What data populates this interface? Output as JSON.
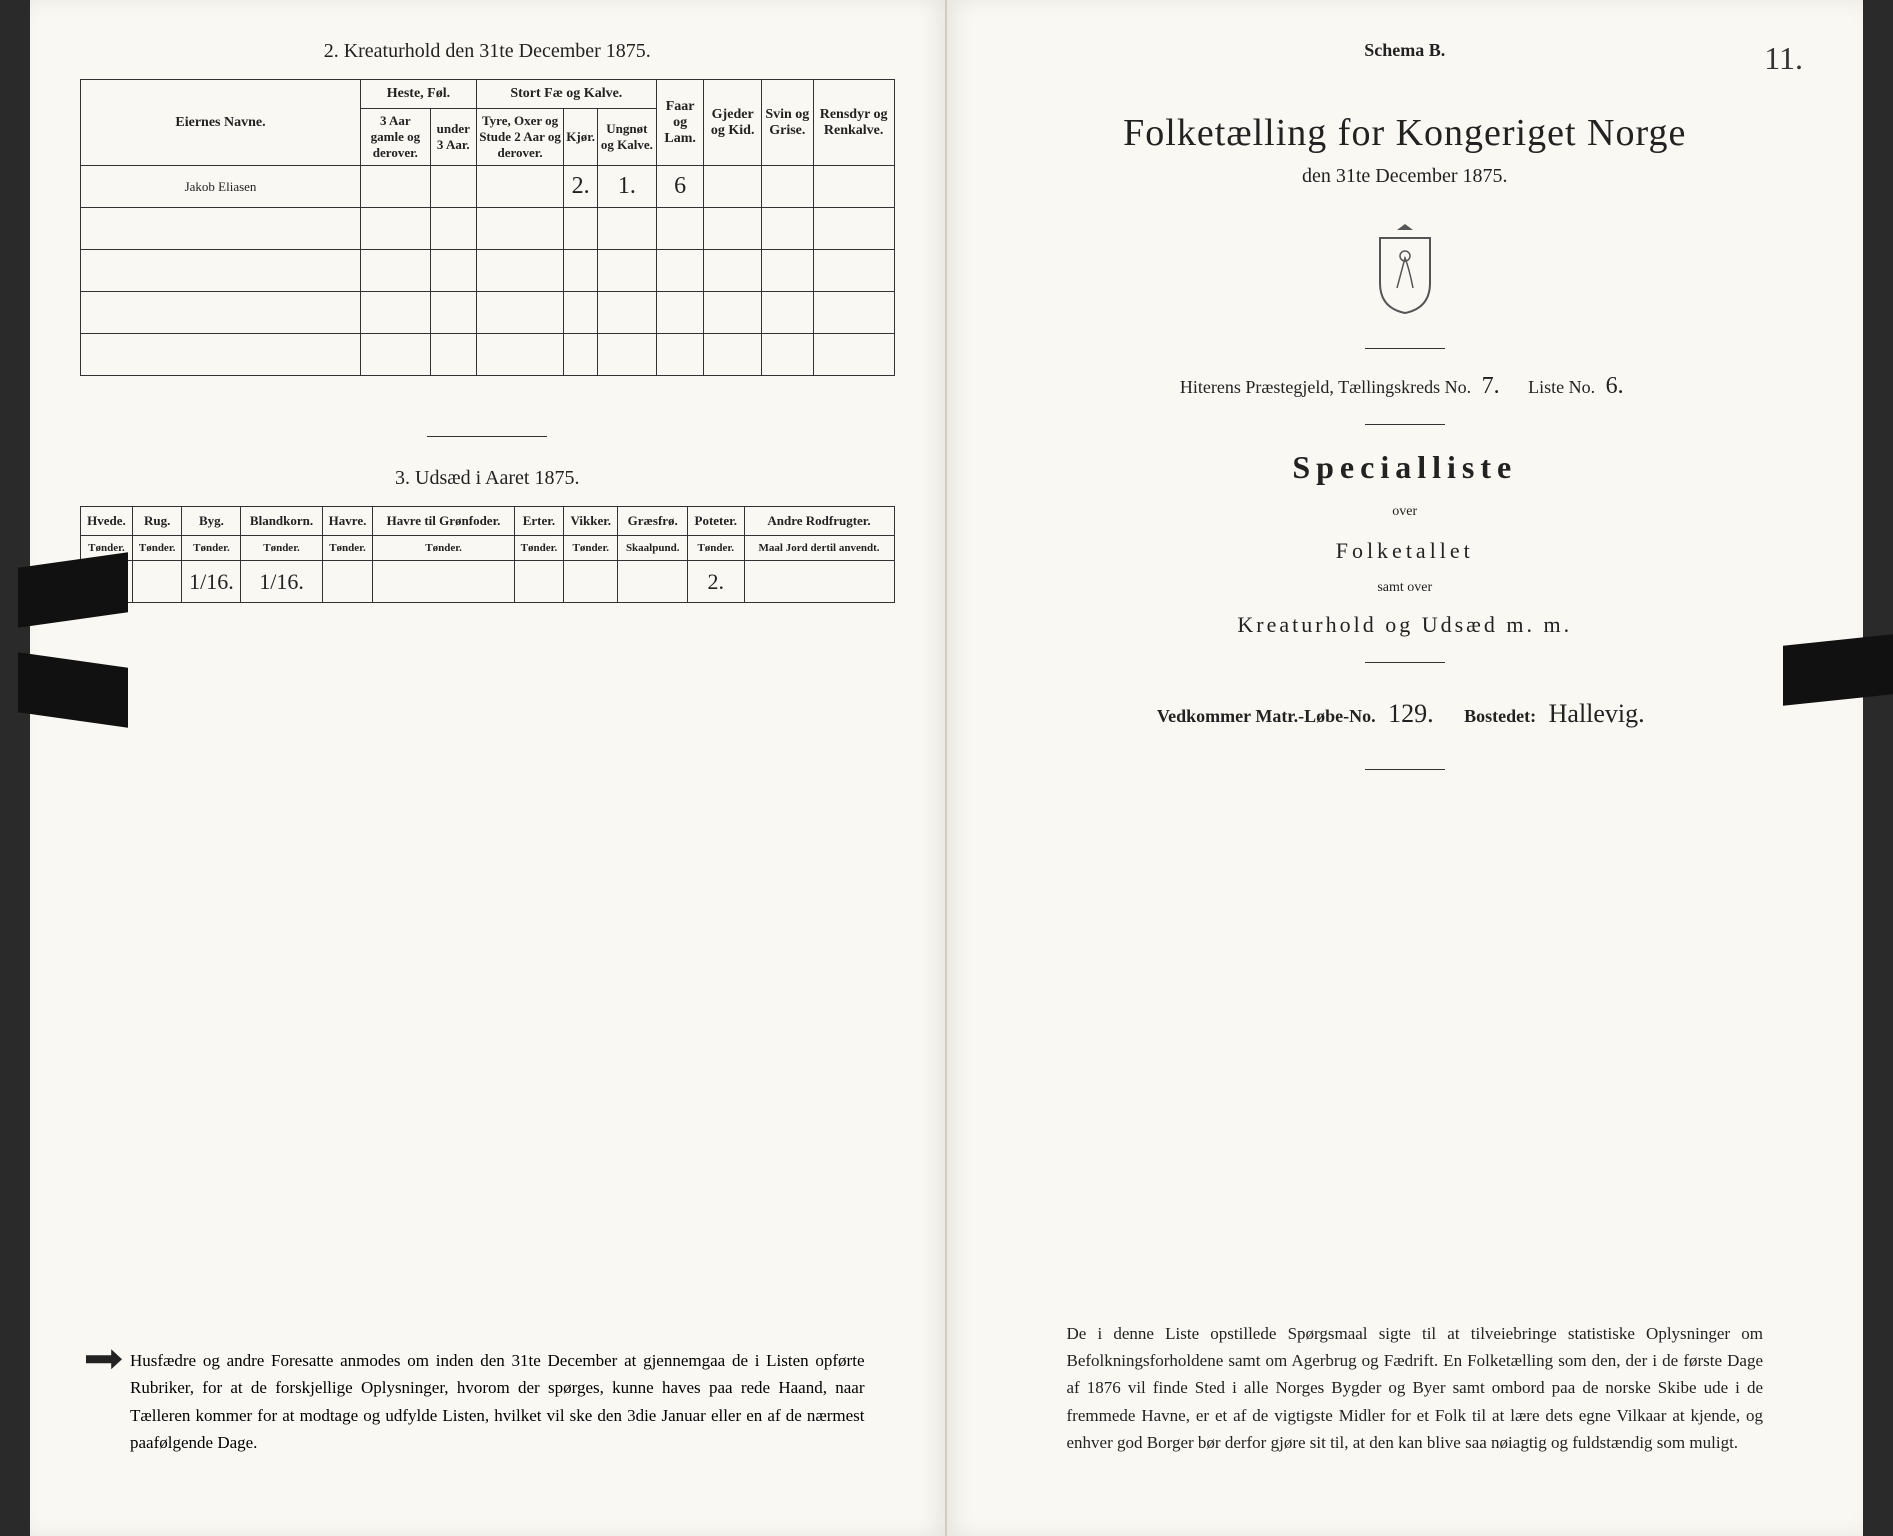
{
  "colors": {
    "paper": "#faf8f2",
    "ink": "#222222",
    "border": "#333333",
    "binding": "#2a2a2a",
    "handwriting": "#333333"
  },
  "left": {
    "section2": {
      "title": "2.  Kreaturhold den 31te December 1875.",
      "name_header": "Eiernes Navne.",
      "groups": {
        "heste": "Heste, Føl.",
        "stort": "Stort Fæ og Kalve.",
        "faar": "Faar og Lam.",
        "gjeder": "Gjeder og Kid.",
        "svin": "Svin og Grise.",
        "rensdyr": "Rensdyr og Renkalve."
      },
      "sub": {
        "h1": "3 Aar gamle og derover.",
        "h2": "under 3 Aar.",
        "s1": "Tyre, Oxer og Stude 2 Aar og derover.",
        "s2": "Kjør.",
        "s3": "Ungnøt og Kalve."
      },
      "rows": [
        {
          "name": "Jakob Eliasen",
          "vals": [
            "",
            "",
            "",
            "2.",
            "1.",
            "6",
            "",
            "",
            ""
          ]
        },
        {
          "name": "",
          "vals": [
            "",
            "",
            "",
            "",
            "",
            "",
            "",
            "",
            ""
          ]
        },
        {
          "name": "",
          "vals": [
            "",
            "",
            "",
            "",
            "",
            "",
            "",
            "",
            ""
          ]
        },
        {
          "name": "",
          "vals": [
            "",
            "",
            "",
            "",
            "",
            "",
            "",
            "",
            ""
          ]
        },
        {
          "name": "",
          "vals": [
            "",
            "",
            "",
            "",
            "",
            "",
            "",
            "",
            ""
          ]
        }
      ]
    },
    "section3": {
      "title": "3.  Udsæd i Aaret 1875.",
      "headers": [
        "Hvede.",
        "Rug.",
        "Byg.",
        "Blandkorn.",
        "Havre.",
        "Havre til Grønfoder.",
        "Erter.",
        "Vikker.",
        "Græsfrø.",
        "Poteter.",
        "Andre Rodfrugter."
      ],
      "units": [
        "Tønder.",
        "Tønder.",
        "Tønder.",
        "Tønder.",
        "Tønder.",
        "Tønder.",
        "Tønder.",
        "Tønder.",
        "Skaalpund.",
        "Tønder.",
        "Maal Jord dertil anvendt."
      ],
      "row": [
        "",
        "",
        "1/16.",
        "1/16.",
        "",
        "",
        "",
        "",
        "",
        "2.",
        ""
      ]
    },
    "footer": "Husfædre og andre Foresatte anmodes om inden den 31te December at gjennemgaa de i Listen opførte Rubriker, for at de forskjellige Oplysninger, hvorom der spørges, kunne haves paa rede Haand, naar Tælleren kommer for at modtage og udfylde Listen, hvilket vil ske den 3die Januar eller en af de nærmest paafølgende Dage."
  },
  "right": {
    "schema": "Schema B.",
    "page_number": "11.",
    "title": "Folketælling for Kongeriget Norge",
    "date": "den 31te December 1875.",
    "region_prefix": "Hiterens Præstegjeld, Tællingskreds No.",
    "kreds_no": "7.",
    "liste_label": "Liste No.",
    "liste_no": "6.",
    "special": "Specialliste",
    "over1": "over",
    "folketallet": "Folketallet",
    "samt": "samt over",
    "kreatur": "Kreaturhold og Udsæd m. m.",
    "vedkommer_label": "Vedkommer Matr.-Løbe-No.",
    "matr_no": "129.",
    "bostedet_label": "Bostedet:",
    "bostedet": "Hallevig.",
    "footer": "De i denne Liste opstillede Spørgsmaal sigte til at tilveiebringe statistiske Oplysninger om Befolkningsforholdene samt om Agerbrug og Fædrift.  En Folketælling som den, der i de første Dage af 1876 vil finde Sted i alle Norges Bygder og Byer samt ombord paa de norske Skibe ude i de fremmede Havne, er et af de vigtigste Midler for et Folk til at lære dets egne Vilkaar at kjende, og enhver god Borger bør derfor gjøre sit til, at den kan blive saa nøiagtig og fuldstændig som muligt."
  }
}
